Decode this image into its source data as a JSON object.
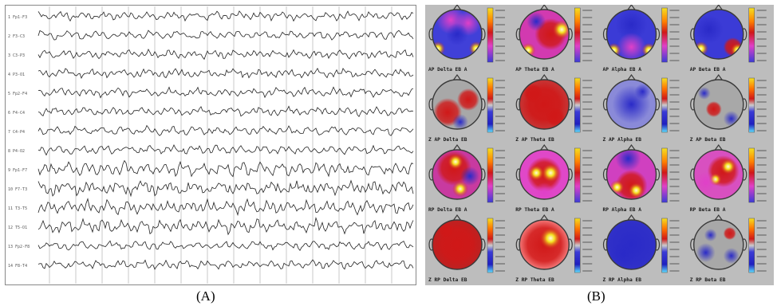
{
  "captions": {
    "a": "(A)",
    "b": "(B)"
  },
  "eeg": {
    "channels": [
      "1 Fp1-F3",
      "2 F3-C3",
      "3 C3-P3",
      "4 P3-O1",
      "5 Fp2-F4",
      "6 F4-C4",
      "7 C4-P4",
      "8 P4-O2",
      "9 Fp1-F7",
      "10 F7-T3",
      "11 T3-T5",
      "12 T5-O1",
      "13 Fp2-F8",
      "14 F8-T4"
    ],
    "line_color": "#222222",
    "grid_color": "#c9c9c9"
  },
  "maps": {
    "bands": [
      "Delta",
      "Theta",
      "Alpha",
      "Beta"
    ],
    "rows": [
      {
        "prefix": "AP",
        "suffix": "EB A",
        "kind": "power",
        "labels": [
          "AP Delta EB A",
          "AP Theta EB A",
          "AP Alpha EB A",
          "AP Beta EB A"
        ]
      },
      {
        "prefix": "Z AP",
        "suffix": "EB",
        "kind": "zscore",
        "labels": [
          "Z AP Delta EB",
          "Z AP Theta EB",
          "Z AP Alpha EB",
          "Z AP Beta EB"
        ]
      },
      {
        "prefix": "RP",
        "suffix": "EB A",
        "kind": "power",
        "labels": [
          "RP Delta EB A",
          "RP Theta EB A",
          "RP Alpha EB A",
          "RP Beta EB A"
        ]
      },
      {
        "prefix": "Z RP",
        "suffix": "EB",
        "kind": "zscore",
        "labels": [
          "Z RP Delta EB",
          "Z RP Theta EB",
          "Z RP Alpha EB",
          "Z RP Beta EB"
        ]
      }
    ],
    "colors": {
      "panel_bg": "#bdbdbd",
      "head_outline": "#3a3a3a",
      "blue": "#3b3bd6",
      "magenta": "#e040c8",
      "red": "#d01818",
      "yellow": "#f4e020",
      "gray": "#a8a8a8"
    }
  }
}
